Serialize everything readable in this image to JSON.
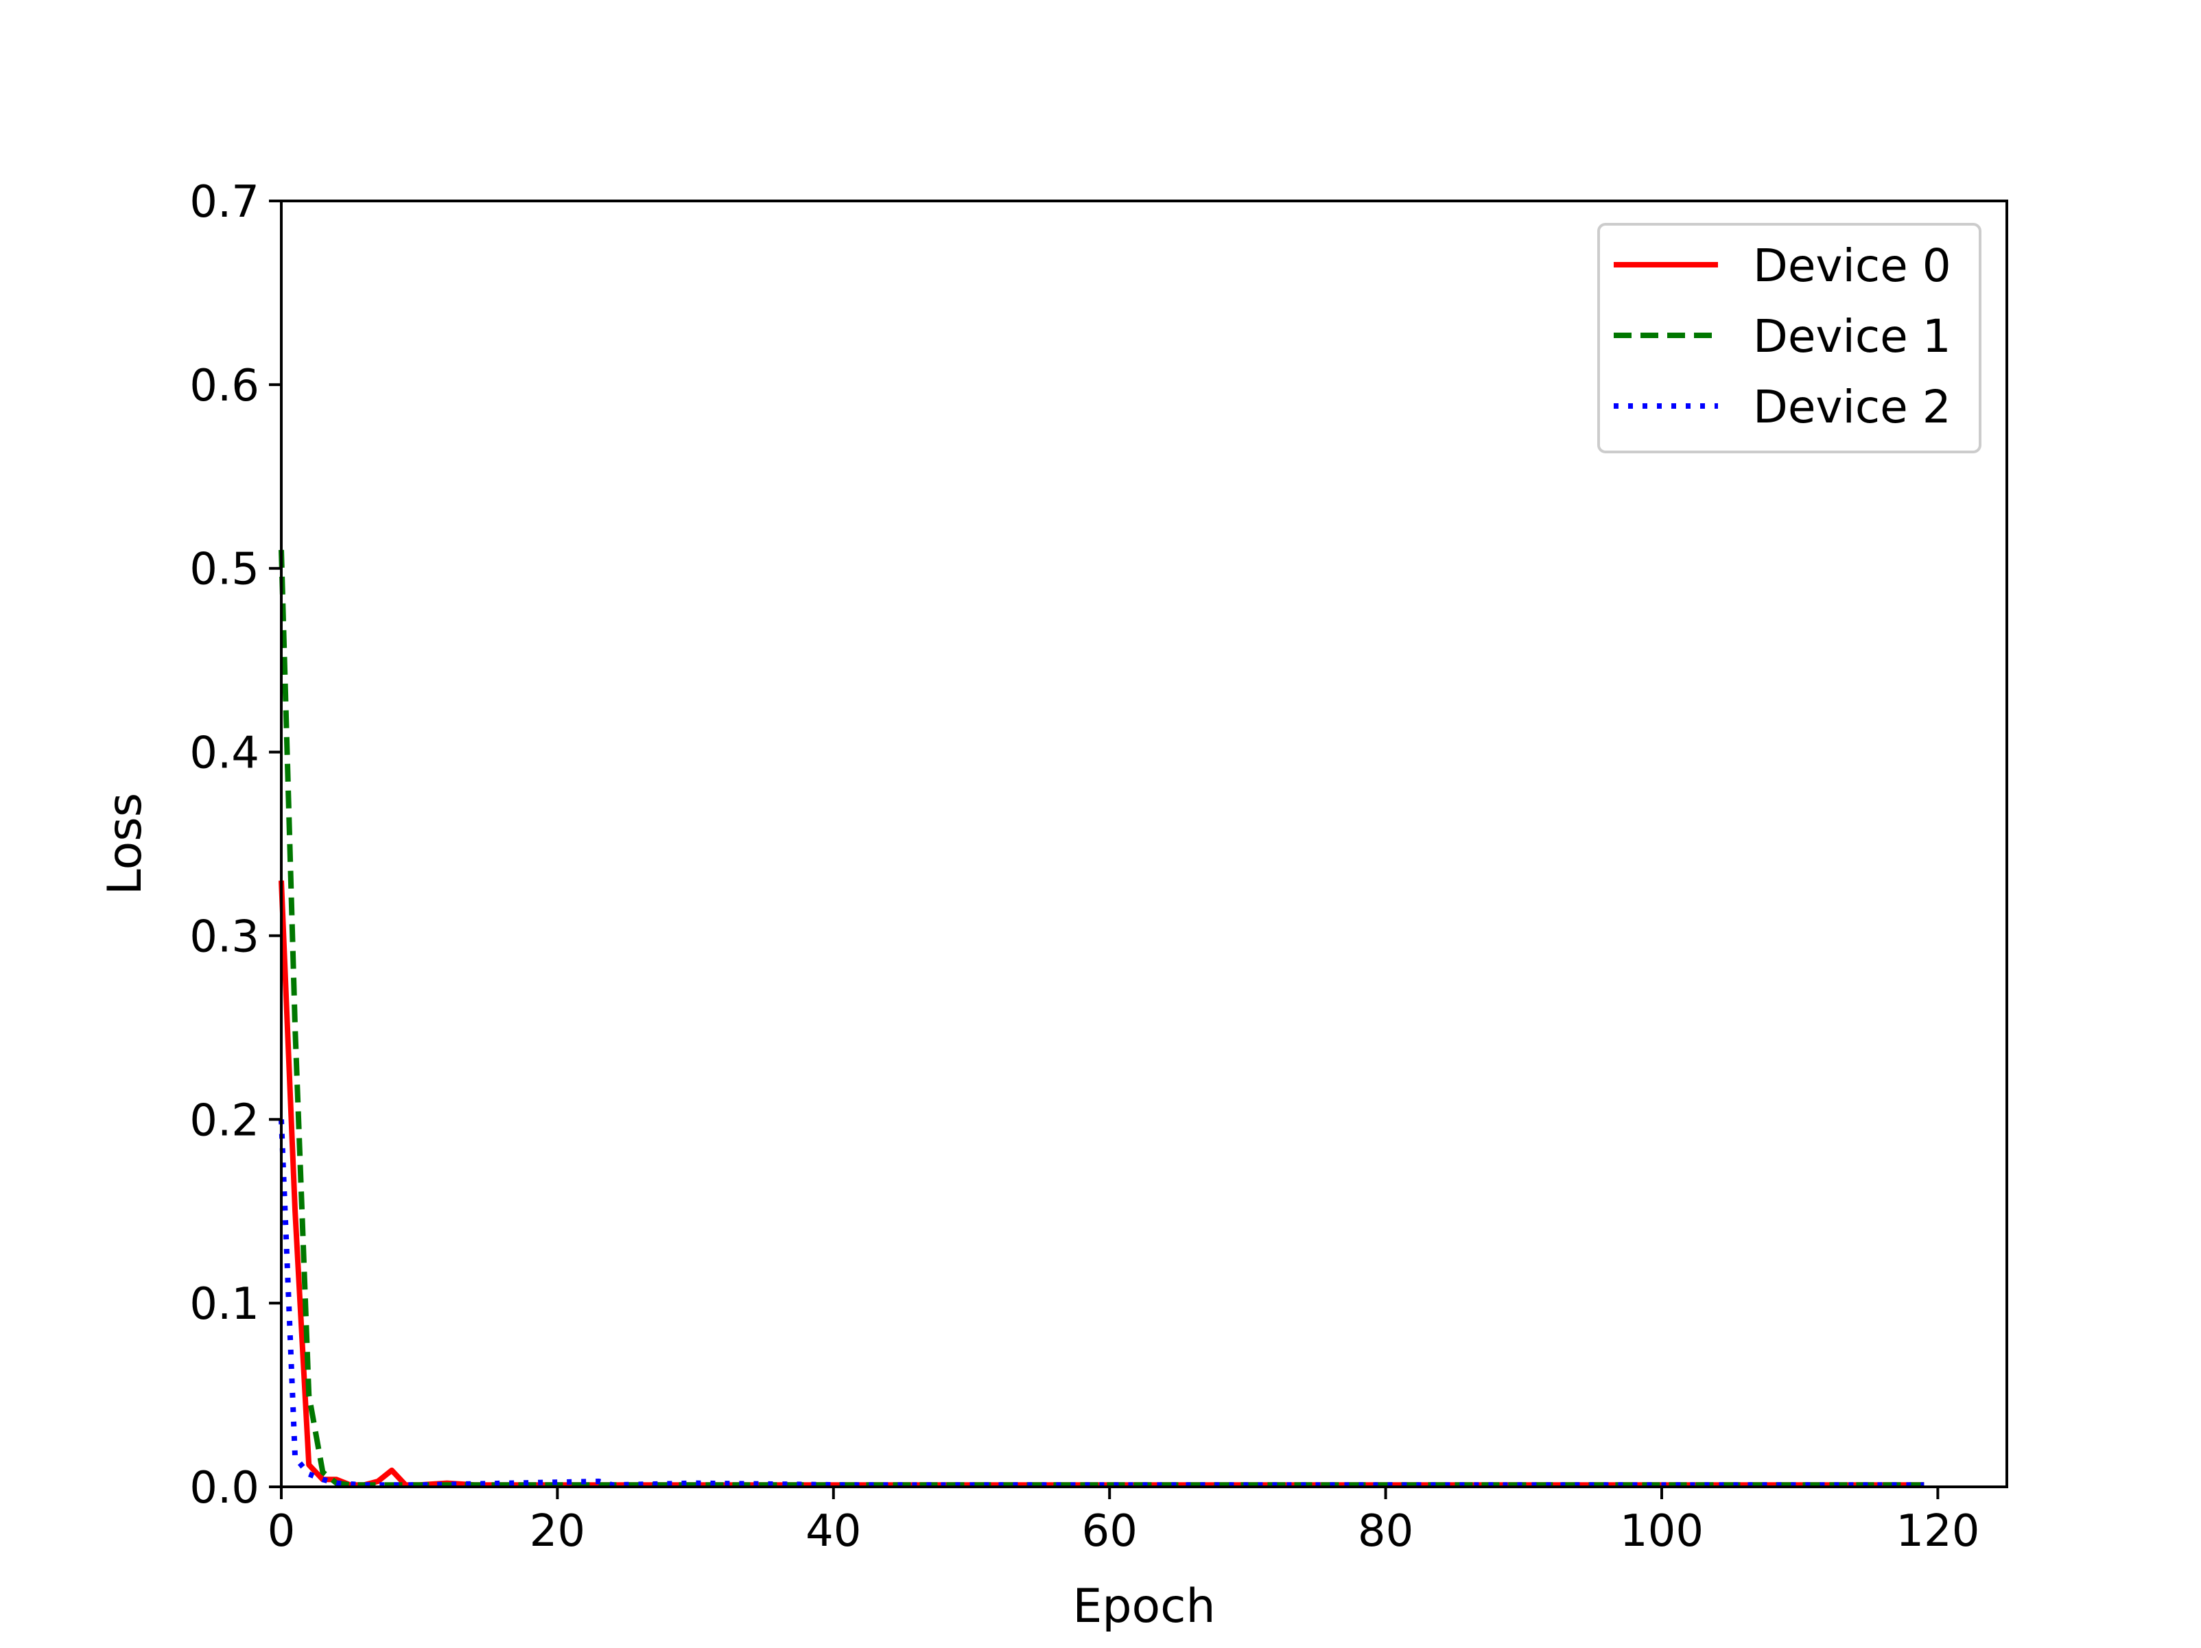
{
  "chart_data": {
    "type": "line",
    "title": "",
    "xlabel": "Epoch",
    "ylabel": "Loss",
    "xlim": [
      0,
      125
    ],
    "ylim": [
      0,
      0.7
    ],
    "xticks": [
      0,
      20,
      40,
      60,
      80,
      100,
      120
    ],
    "xtick_labels": [
      "0",
      "20",
      "40",
      "60",
      "80",
      "100",
      "120"
    ],
    "yticks": [
      0,
      0.1,
      0.2,
      0.3,
      0.4,
      0.5,
      0.6,
      0.7
    ],
    "ytick_labels": [
      "0.0",
      "0.1",
      "0.2",
      "0.3",
      "0.4",
      "0.5",
      "0.6",
      "0.7"
    ],
    "grid": false,
    "legend_position": "top-right",
    "series": [
      {
        "name": "Device 0",
        "color": "#ff0000",
        "style": "solid",
        "x": [
          0,
          1,
          2,
          3,
          4,
          5,
          6,
          7,
          8,
          9,
          10,
          12,
          14,
          20,
          30,
          40,
          60,
          80,
          100,
          119
        ],
        "y": [
          0.33,
          0.15,
          0.012,
          0.004,
          0.004,
          0.001,
          0.001,
          0.003,
          0.009,
          0.001,
          0.001,
          0.002,
          0.001,
          0.001,
          0.001,
          0.001,
          0.001,
          0.001,
          0.001,
          0.001
        ]
      },
      {
        "name": "Device 1",
        "color": "#007700",
        "style": "dashed",
        "x": [
          0,
          1,
          2,
          3,
          4,
          5,
          8,
          12,
          20,
          40,
          60,
          80,
          100,
          119
        ],
        "y": [
          0.51,
          0.25,
          0.05,
          0.008,
          0.002,
          0.001,
          0.001,
          0.001,
          0.001,
          0.001,
          0.001,
          0.001,
          0.001,
          0.001
        ]
      },
      {
        "name": "Device 2",
        "color": "#0000ff",
        "style": "dotted",
        "x": [
          0,
          1,
          2,
          3,
          4,
          6,
          10,
          23,
          24,
          30,
          41,
          60,
          80,
          100,
          119
        ],
        "y": [
          0.2,
          0.016,
          0.007,
          0.004,
          0.002,
          0.001,
          0.001,
          0.003,
          0.001,
          0.002,
          0.001,
          0.001,
          0.001,
          0.001,
          0.001
        ]
      }
    ]
  }
}
